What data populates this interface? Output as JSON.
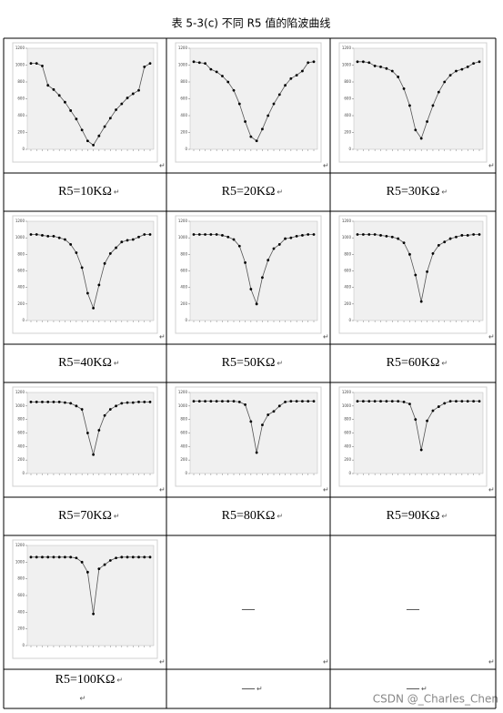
{
  "title": "表 5-3(c)  不同 R5 值的陷波曲线",
  "para_mark": "↵",
  "watermark": "CSDN @_Charles_Chen",
  "axis": {
    "type": "line",
    "ylim": [
      0,
      1200
    ],
    "yticks": [
      0,
      200,
      400,
      600,
      800,
      1000,
      1200
    ]
  },
  "cells": [
    {
      "label": "R5=10KΩ",
      "values": [
        1020,
        1020,
        990,
        760,
        710,
        640,
        560,
        460,
        360,
        230,
        100,
        50,
        160,
        270,
        370,
        470,
        540,
        610,
        660,
        700,
        980,
        1020
      ]
    },
    {
      "label": "R5=20KΩ",
      "values": [
        1040,
        1030,
        1020,
        950,
        920,
        870,
        800,
        700,
        540,
        330,
        150,
        100,
        240,
        400,
        540,
        650,
        760,
        840,
        880,
        930,
        1030,
        1040
      ]
    },
    {
      "label": "R5=30KΩ",
      "values": [
        1040,
        1040,
        1030,
        990,
        980,
        960,
        930,
        860,
        720,
        520,
        230,
        130,
        330,
        520,
        680,
        800,
        880,
        930,
        950,
        980,
        1020,
        1040
      ]
    },
    {
      "label": "R5=40KΩ",
      "values": [
        1040,
        1040,
        1030,
        1020,
        1020,
        1000,
        980,
        920,
        820,
        640,
        330,
        150,
        430,
        690,
        810,
        880,
        950,
        970,
        980,
        1010,
        1040,
        1040
      ]
    },
    {
      "label": "R5=50KΩ",
      "values": [
        1040,
        1040,
        1040,
        1040,
        1040,
        1030,
        1010,
        980,
        900,
        700,
        380,
        200,
        520,
        730,
        870,
        920,
        990,
        1000,
        1020,
        1030,
        1040,
        1040
      ]
    },
    {
      "label": "R5=60KΩ",
      "values": [
        1040,
        1040,
        1040,
        1040,
        1030,
        1020,
        1010,
        990,
        940,
        800,
        550,
        230,
        590,
        810,
        910,
        950,
        990,
        1010,
        1030,
        1030,
        1040,
        1040
      ]
    },
    {
      "label": "R5=70KΩ",
      "values": [
        1060,
        1060,
        1060,
        1060,
        1060,
        1060,
        1050,
        1040,
        1000,
        950,
        600,
        280,
        640,
        860,
        950,
        1000,
        1040,
        1050,
        1050,
        1060,
        1060,
        1060
      ]
    },
    {
      "label": "R5=80KΩ",
      "values": [
        1070,
        1070,
        1070,
        1070,
        1070,
        1070,
        1070,
        1070,
        1060,
        1020,
        770,
        310,
        720,
        870,
        920,
        1000,
        1060,
        1070,
        1070,
        1070,
        1070,
        1070
      ]
    },
    {
      "label": "R5=90KΩ",
      "values": [
        1070,
        1070,
        1070,
        1070,
        1070,
        1070,
        1070,
        1070,
        1060,
        1030,
        800,
        350,
        780,
        930,
        990,
        1040,
        1070,
        1070,
        1070,
        1070,
        1070,
        1070
      ]
    },
    {
      "label": "R5=100KΩ",
      "values": [
        1060,
        1060,
        1060,
        1060,
        1060,
        1060,
        1060,
        1060,
        1050,
        1000,
        880,
        380,
        920,
        970,
        1020,
        1050,
        1060,
        1060,
        1060,
        1060,
        1060,
        1060
      ]
    },
    {
      "label": "—",
      "text": "—"
    },
    {
      "label": "—",
      "text": "—"
    }
  ]
}
